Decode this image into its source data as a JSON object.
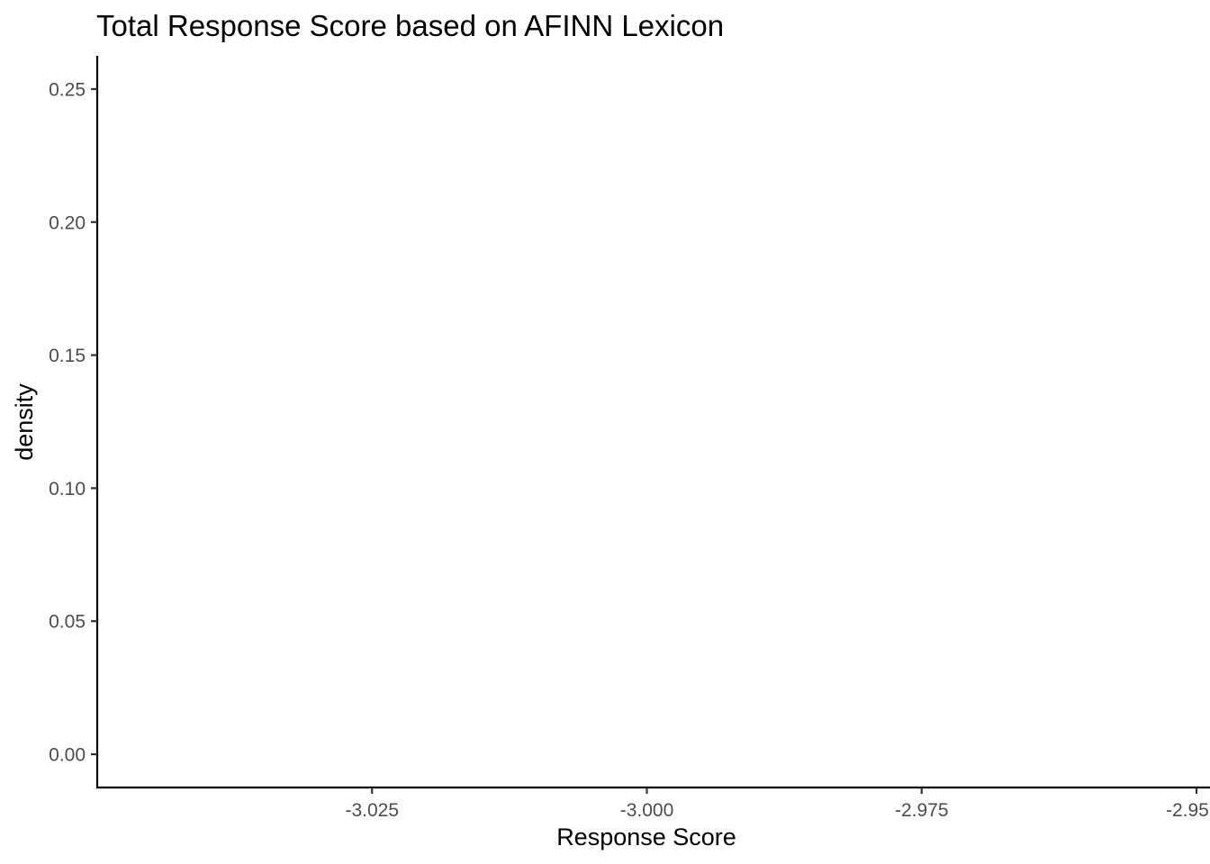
{
  "chart_data": {
    "type": "area",
    "title": "Total Response Score based on AFINN Lexicon",
    "xlabel": "Response Score",
    "ylabel": "density",
    "x_ticks": [
      -3.025,
      -3.0,
      -2.975,
      -2.95
    ],
    "x_tick_labels": [
      "-3.025",
      "-3.000",
      "-2.975",
      "-2.95"
    ],
    "y_ticks": [
      0.0,
      0.05,
      0.1,
      0.15,
      0.2,
      0.25
    ],
    "y_tick_labels": [
      "0.00",
      "0.05",
      "0.10",
      "0.15",
      "0.20",
      "0.25"
    ],
    "xlim": [
      -3.05,
      -2.95
    ],
    "ylim": [
      -0.0125,
      0.2625
    ],
    "grid": false,
    "series": []
  }
}
